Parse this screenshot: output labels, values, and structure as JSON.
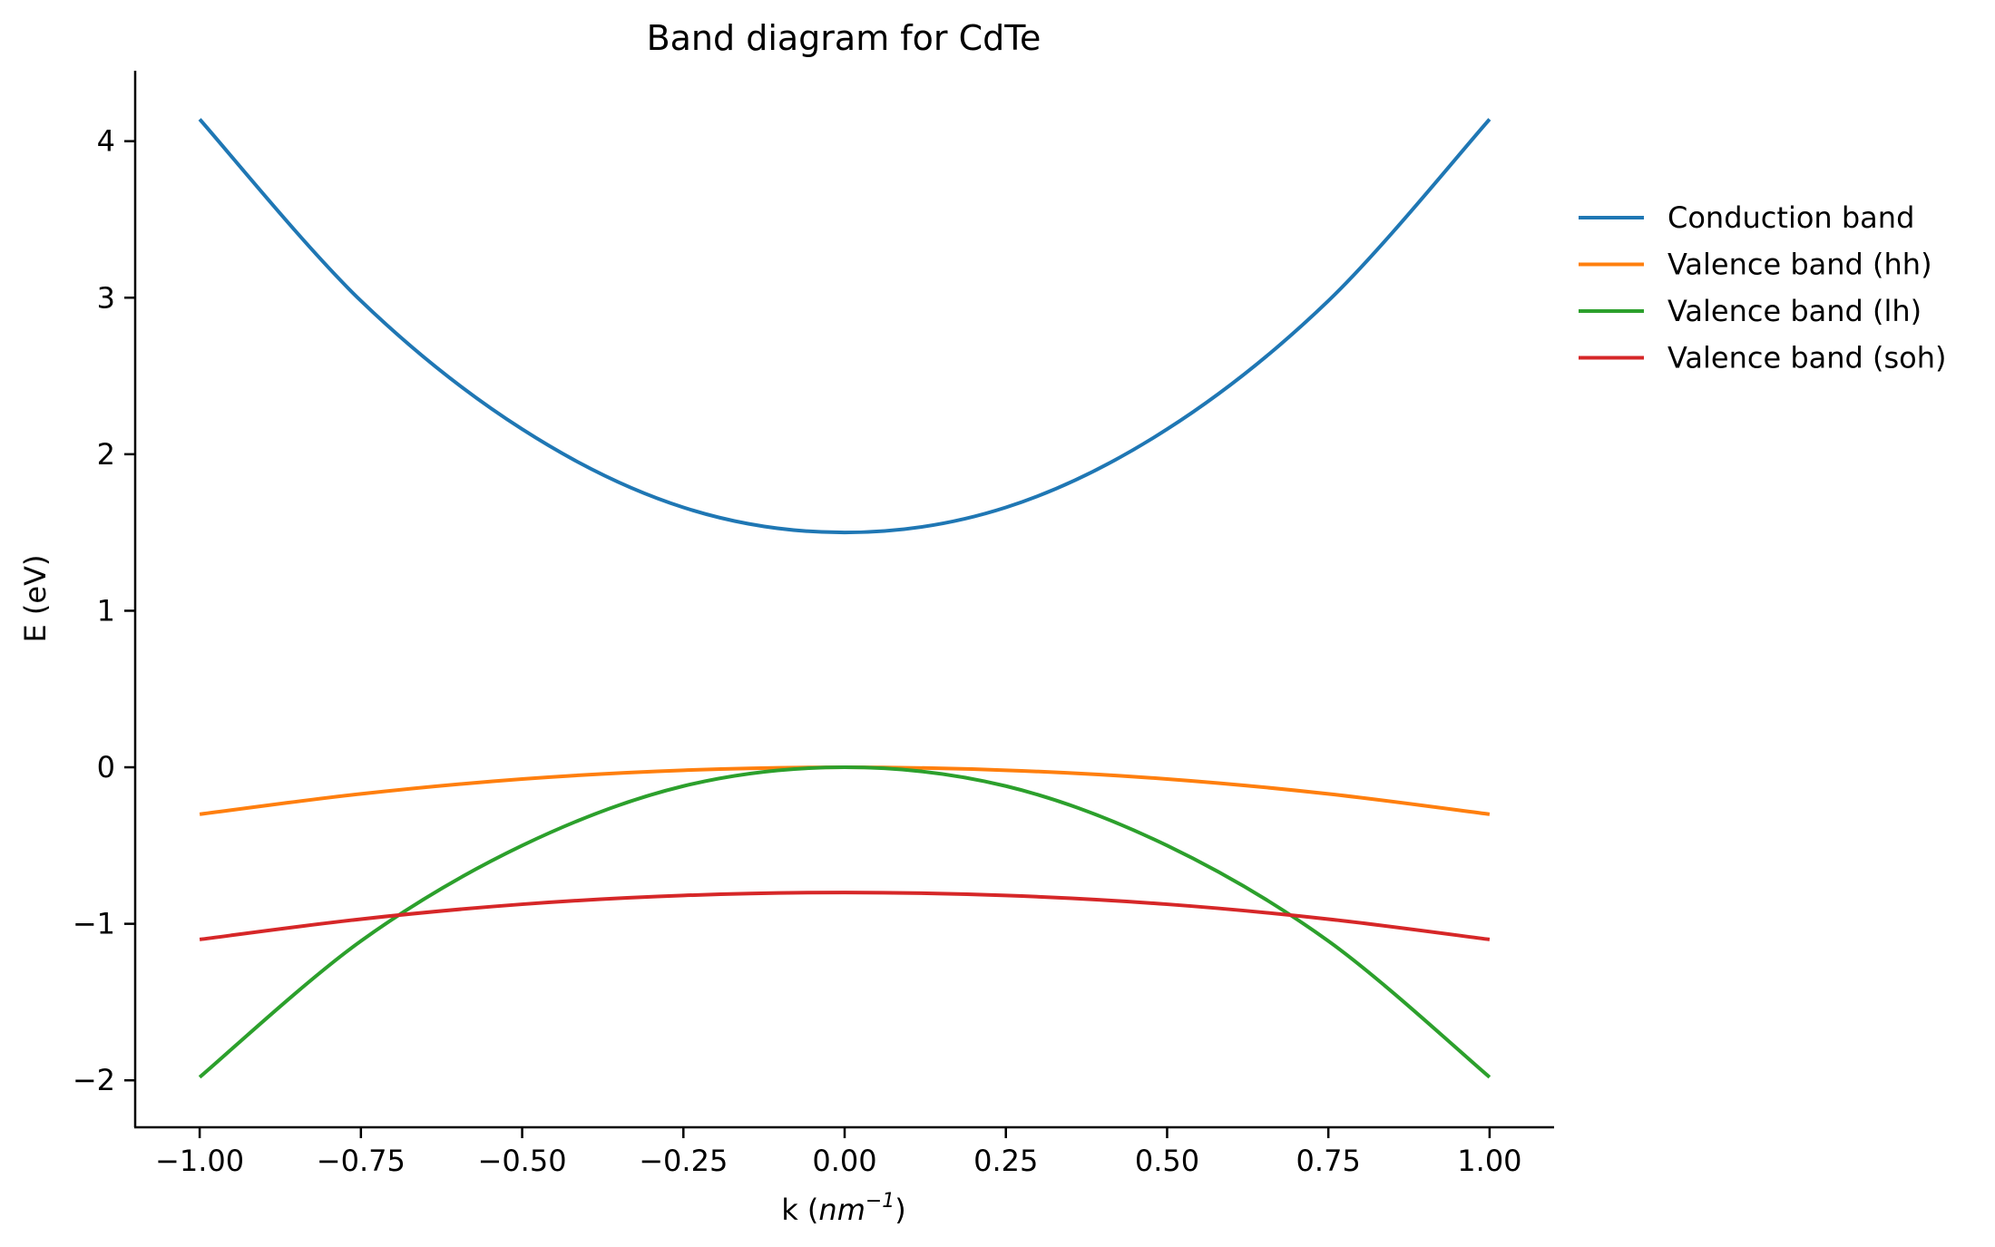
{
  "chart_data": {
    "type": "line",
    "title": "Band diagram for CdTe",
    "xlabel_prefix": "k (",
    "xlabel_var": "nm",
    "xlabel_exp": "−1",
    "xlabel_suffix": ")",
    "ylabel": "E (eV)",
    "xlim": [
      -1.1,
      1.1
    ],
    "ylim": [
      -2.3,
      4.45
    ],
    "x_ticks": [
      -1.0,
      -0.75,
      -0.5,
      -0.25,
      0.0,
      0.25,
      0.5,
      0.75,
      1.0
    ],
    "x_tick_labels": [
      "−1.00",
      "−0.75",
      "−0.50",
      "−0.25",
      "0.00",
      "0.25",
      "0.50",
      "0.75",
      "1.00"
    ],
    "y_ticks": [
      -2,
      -1,
      0,
      1,
      2,
      3,
      4
    ],
    "y_tick_labels": [
      "−2",
      "−1",
      "0",
      "1",
      "2",
      "3",
      "4"
    ],
    "grid": false,
    "legend_position": "outside-top-right",
    "series": [
      {
        "name": "Conduction band",
        "color": "#1f77b4",
        "x": [
          -1.0,
          -0.75,
          -0.5,
          -0.25,
          0.0,
          0.25,
          0.5,
          0.75,
          1.0
        ],
        "y": [
          4.14,
          2.98,
          2.16,
          1.66,
          1.5,
          1.66,
          2.16,
          2.98,
          4.14
        ]
      },
      {
        "name": "Valence band (hh)",
        "color": "#ff7f0e",
        "x": [
          -1.0,
          -0.75,
          -0.5,
          -0.25,
          0.0,
          0.25,
          0.5,
          0.75,
          1.0
        ],
        "y": [
          -0.3,
          -0.17,
          -0.075,
          -0.019,
          0.0,
          -0.019,
          -0.075,
          -0.17,
          -0.3
        ]
      },
      {
        "name": "Valence band (lh)",
        "color": "#2ca02c",
        "x": [
          -1.0,
          -0.75,
          -0.5,
          -0.25,
          0.0,
          0.25,
          0.5,
          0.75,
          1.0
        ],
        "y": [
          -1.98,
          -1.11,
          -0.5,
          -0.12,
          0.0,
          -0.12,
          -0.5,
          -1.11,
          -1.98
        ]
      },
      {
        "name": "Valence band (soh)",
        "color": "#d62728",
        "x": [
          -1.0,
          -0.75,
          -0.5,
          -0.25,
          0.0,
          0.25,
          0.5,
          0.75,
          1.0
        ],
        "y": [
          -1.1,
          -0.97,
          -0.875,
          -0.819,
          -0.8,
          -0.819,
          -0.875,
          -0.97,
          -1.1
        ]
      }
    ]
  }
}
